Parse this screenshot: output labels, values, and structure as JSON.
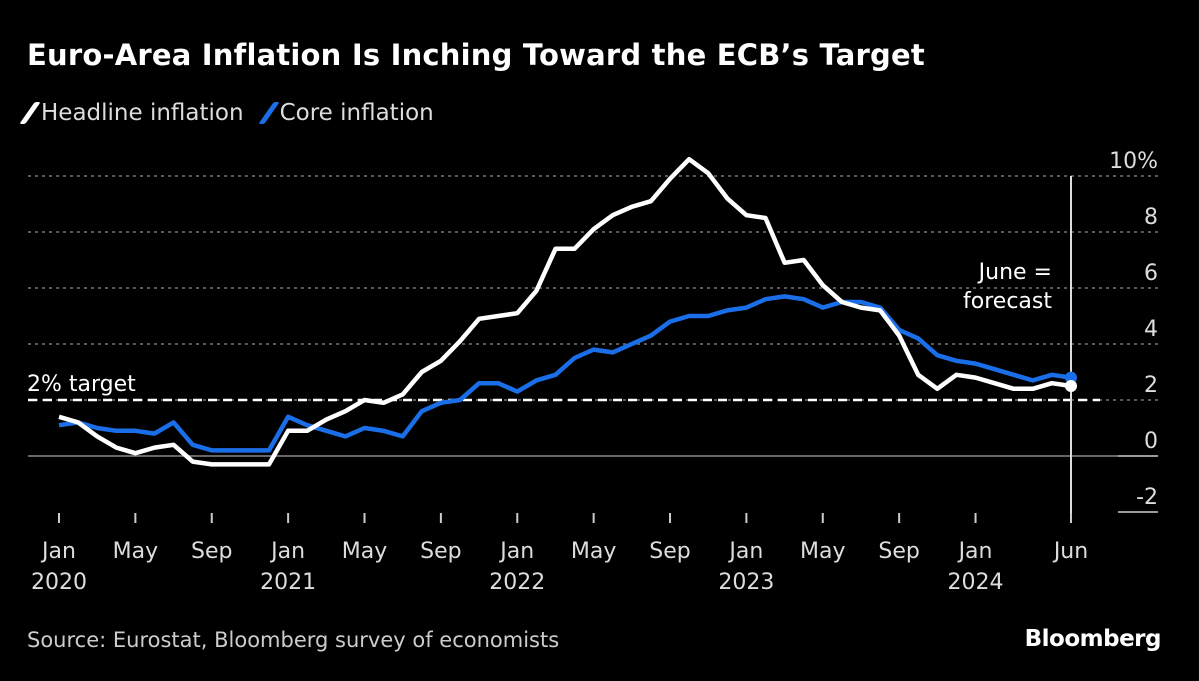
{
  "title": "Euro-Area Inflation Is Inching Toward the ECB’s Target",
  "source": "Source: Eurostat, Bloomberg survey of economists",
  "logo": "Bloomberg",
  "chart_data": {
    "type": "line",
    "legend_position": "top-left",
    "x_start": "2020-01",
    "x_end": "2024-06",
    "frequency": "monthly",
    "ylim": [
      -2,
      10
    ],
    "y_ticks": [
      "10%",
      "8",
      "6",
      "4",
      "2",
      "0",
      "-2"
    ],
    "x_ticks": [
      {
        "label": "Jan",
        "year": "2020"
      },
      {
        "label": "May",
        "year": ""
      },
      {
        "label": "Sep",
        "year": ""
      },
      {
        "label": "Jan",
        "year": "2021"
      },
      {
        "label": "May",
        "year": ""
      },
      {
        "label": "Sep",
        "year": ""
      },
      {
        "label": "Jan",
        "year": "2022"
      },
      {
        "label": "May",
        "year": ""
      },
      {
        "label": "Sep",
        "year": ""
      },
      {
        "label": "Jan",
        "year": "2023"
      },
      {
        "label": "May",
        "year": ""
      },
      {
        "label": "Sep",
        "year": ""
      },
      {
        "label": "Jan",
        "year": "2024"
      },
      {
        "label": "Jun",
        "year": ""
      }
    ],
    "target": {
      "value": 2,
      "label": "2% target"
    },
    "annotation": "June =\nforecast",
    "series": [
      {
        "name": "Headline inflation",
        "color": "#ffffff",
        "values": [
          1.4,
          1.2,
          0.7,
          0.3,
          0.1,
          0.3,
          0.4,
          -0.2,
          -0.3,
          -0.3,
          -0.3,
          -0.3,
          0.9,
          0.9,
          1.3,
          1.6,
          2.0,
          1.9,
          2.2,
          3.0,
          3.4,
          4.1,
          4.9,
          5.0,
          5.1,
          5.9,
          7.4,
          7.4,
          8.1,
          8.6,
          8.9,
          9.1,
          9.9,
          10.6,
          10.1,
          9.2,
          8.6,
          8.5,
          6.9,
          7.0,
          6.1,
          5.5,
          5.3,
          5.2,
          4.3,
          2.9,
          2.4,
          2.9,
          2.8,
          2.6,
          2.4,
          2.4,
          2.6,
          2.5
        ]
      },
      {
        "name": "Core inflation",
        "color": "#1a6fe8",
        "values": [
          1.1,
          1.2,
          1.0,
          0.9,
          0.9,
          0.8,
          1.2,
          0.4,
          0.2,
          0.2,
          0.2,
          0.2,
          1.4,
          1.1,
          0.9,
          0.7,
          1.0,
          0.9,
          0.7,
          1.6,
          1.9,
          2.0,
          2.6,
          2.6,
          2.3,
          2.7,
          2.9,
          3.5,
          3.8,
          3.7,
          4.0,
          4.3,
          4.8,
          5.0,
          5.0,
          5.2,
          5.3,
          5.6,
          5.7,
          5.6,
          5.3,
          5.5,
          5.5,
          5.3,
          4.5,
          4.2,
          3.6,
          3.4,
          3.3,
          3.1,
          2.9,
          2.7,
          2.9,
          2.8
        ]
      }
    ]
  }
}
